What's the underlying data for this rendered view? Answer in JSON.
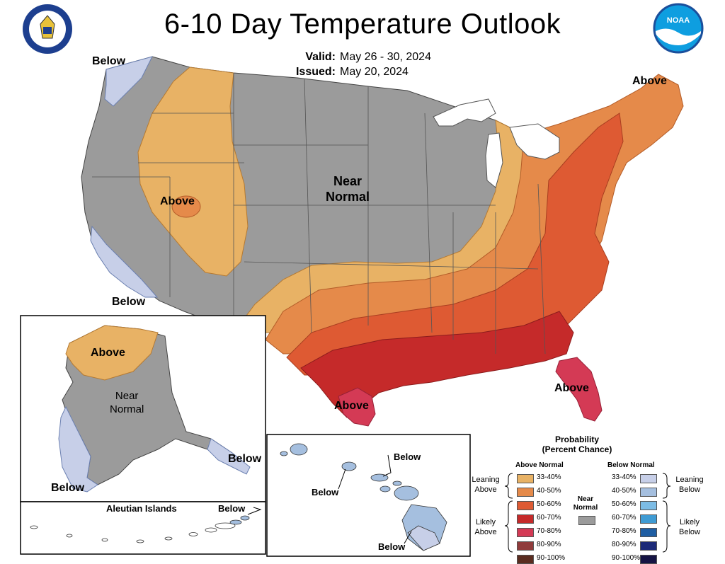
{
  "title": "6-10 Day Temperature Outlook",
  "valid": {
    "label": "Valid:",
    "value": "May 26 - 30, 2024"
  },
  "issued": {
    "label": "Issued:",
    "value": "May 20, 2024"
  },
  "logos": {
    "left": "department-of-commerce-seal",
    "right": "noaa-logo",
    "noaa_text": "NOAA"
  },
  "colors": {
    "near_normal": "#9b9b9b",
    "above_33_40": "#e8b265",
    "above_40_50": "#e58a4a",
    "above_50_60": "#de5a33",
    "above_60_70": "#c52a2a",
    "above_70_80": "#d43a55",
    "above_80_90": "#903b3b",
    "above_90_100": "#5a2c20",
    "below_33_40": "#c7cfe8",
    "below_40_50": "#a5bfdf",
    "below_50_60": "#7cbce5",
    "below_60_70": "#3f9bd3",
    "below_70_80": "#1f5ea3",
    "below_80_90": "#1c2a78",
    "below_90_100": "#151444"
  },
  "map_labels": {
    "below_nw": "Below",
    "below_sw": "Below",
    "above_west": "Above",
    "near_normal": [
      "Near",
      "Normal"
    ],
    "above_ne": "Above",
    "above_fl": "Above",
    "above_tx": "Above"
  },
  "alaska": {
    "above": "Above",
    "near_normal": [
      "Near",
      "Normal"
    ],
    "below_sw": "Below",
    "below_se": "Below",
    "aleutian_title": "Aleutian Islands",
    "aleutian_below": "Below"
  },
  "hawaii": {
    "below_ne": "Below",
    "below_w": "Below",
    "below_s": "Below"
  },
  "legend": {
    "title_line1": "Probability",
    "title_line2": "(Percent Chance)",
    "above_header": "Above Normal",
    "below_header": "Below Normal",
    "near_normal": [
      "Near",
      "Normal"
    ],
    "ranges": [
      "33-40%",
      "40-50%",
      "50-60%",
      "60-70%",
      "70-80%",
      "80-90%",
      "90-100%"
    ],
    "leaning_above": [
      "Leaning",
      "Above"
    ],
    "likely_above": [
      "Likely",
      "Above"
    ],
    "leaning_below": [
      "Leaning",
      "Below"
    ],
    "likely_below": [
      "Likely",
      "Below"
    ]
  }
}
